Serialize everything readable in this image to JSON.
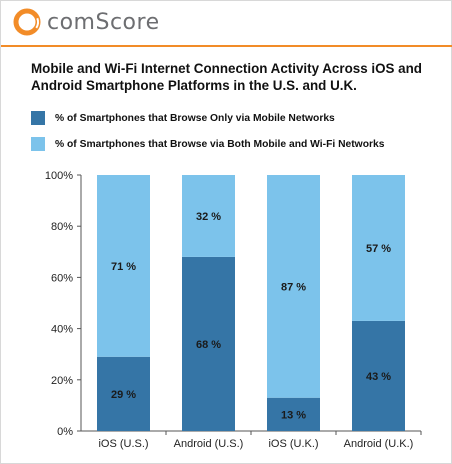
{
  "header": {
    "logo_text": "comScore",
    "logo_icon": "comscore-ring-icon",
    "accent_color": "#f28c28"
  },
  "chart_data": {
    "type": "bar",
    "stacked": true,
    "percent_stacked": true,
    "title": "Mobile and Wi-Fi Internet Connection Activity Across iOS and Android Smartphone Platforms in the U.S. and U.K.",
    "categories": [
      "iOS (U.S.)",
      "Android (U.S.)",
      "iOS (U.K.)",
      "Android (U.K.)"
    ],
    "series": [
      {
        "name": "% of Smartphones that Browse Only via Mobile Networks",
        "color": "#3575a6",
        "values": [
          29,
          68,
          13,
          43
        ],
        "labels": [
          "29 %",
          "68 %",
          "13 %",
          "43 %"
        ]
      },
      {
        "name": "% of Smartphones that Browse via Both Mobile and Wi-Fi Networks",
        "color": "#7cc3eb",
        "values": [
          71,
          32,
          87,
          57
        ],
        "labels": [
          "71 %",
          "32 %",
          "87 %",
          "57 %"
        ]
      }
    ],
    "ylim": [
      0,
      100
    ],
    "yticks": [
      0,
      20,
      40,
      60,
      80,
      100
    ],
    "ytick_labels": [
      "0%",
      "20%",
      "40%",
      "60%",
      "80%",
      "100%"
    ],
    "legend_position": "top",
    "grid": false
  }
}
